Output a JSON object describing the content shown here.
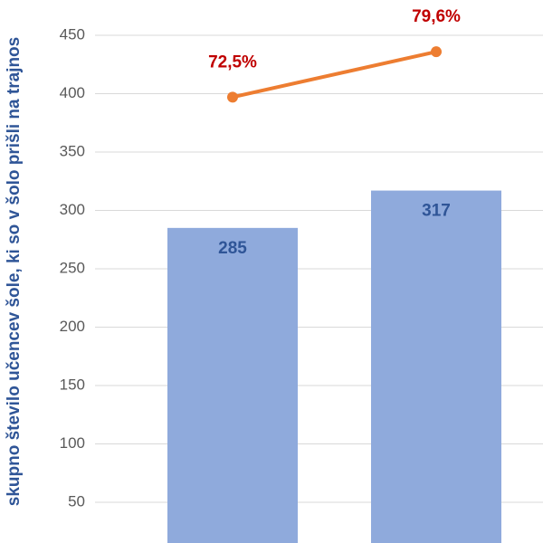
{
  "chart_data": {
    "type": "bar",
    "y_axis_label": "skupno število učencev šole, ki so v šolo prišli na trajnos",
    "categories": [
      null,
      null
    ],
    "series": [
      {
        "type": "bar",
        "color": "#8faadc",
        "values": [
          285,
          317
        ]
      },
      {
        "type": "line",
        "axis": "y2",
        "color": "#ed7d31",
        "values": [
          72.5,
          79.6
        ],
        "value_labels": [
          "72,5%",
          "79,6%"
        ]
      }
    ],
    "ylim": [
      0,
      460
    ],
    "yticks": [
      50,
      100,
      150,
      200,
      250,
      300,
      350,
      400,
      450
    ],
    "y2lim": [
      0,
      84
    ],
    "grid": true
  }
}
